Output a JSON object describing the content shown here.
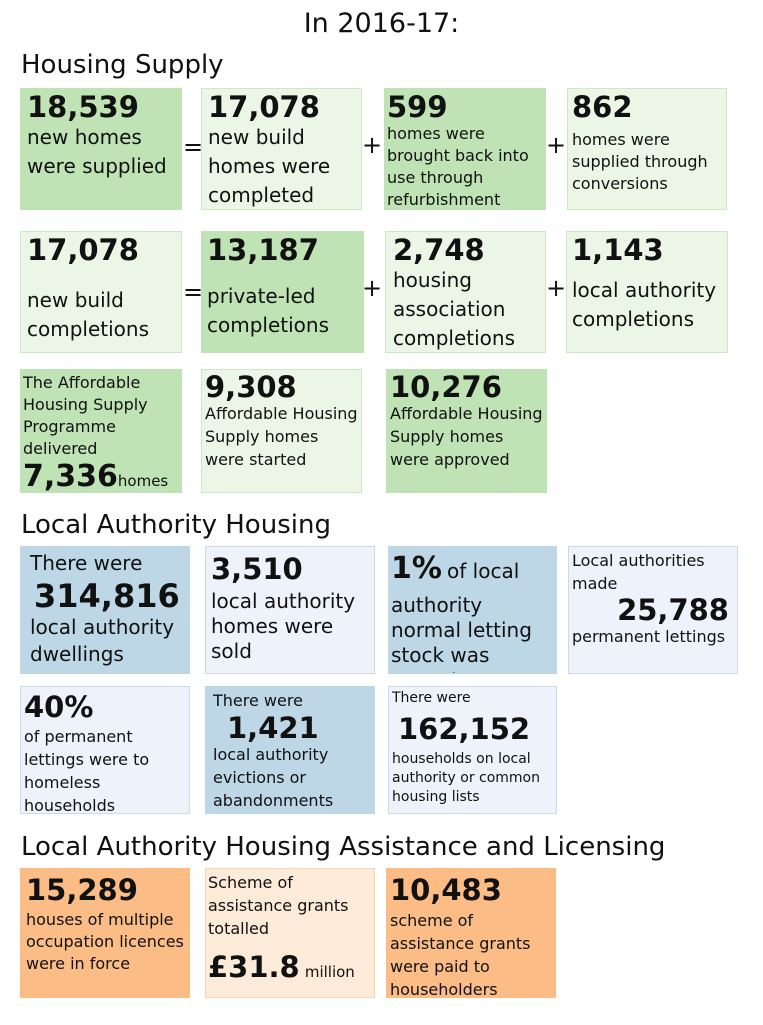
{
  "title": "In 2016-17:",
  "colors": {
    "green_dark": "#bfe3b4",
    "green_light": "#ebf6e7",
    "blue_dark": "#bdd7e7",
    "blue_light": "#eef2fb",
    "orange_dark": "#fbbd85",
    "orange_light": "#fdebd9"
  },
  "housing_supply": {
    "heading": "Housing Supply",
    "row1": {
      "a": {
        "value": "18,539",
        "text": "new homes were supplied"
      },
      "b": {
        "value": "17,078",
        "text": "new build homes were completed"
      },
      "c": {
        "value": "599",
        "text": "homes were brought back into use through refurbishment"
      },
      "d": {
        "value": "862",
        "text": "homes were supplied through conversions"
      }
    },
    "row2": {
      "a": {
        "value": "17,078",
        "text": "new build completions"
      },
      "b": {
        "value": "13,187",
        "text": "private-led completions"
      },
      "c": {
        "value": "2,748",
        "text": "housing association completions"
      },
      "d": {
        "value": "1,143",
        "text": "local authority completions"
      }
    },
    "row3": {
      "a": {
        "text": "The Affordable Housing Supply Programme delivered",
        "value": "7,336",
        "unit": "homes"
      },
      "b": {
        "value": "9,308",
        "text": "Affordable Housing Supply homes were started"
      },
      "c": {
        "value": "10,276",
        "text": "Affordable Housing Supply homes were approved"
      }
    },
    "signs": {
      "equals": "=",
      "plus": "+"
    }
  },
  "la_housing": {
    "heading": "Local Authority Housing",
    "a": {
      "prefix": "There were",
      "value": "314,816",
      "text": "local authority dwellings"
    },
    "b": {
      "value": "3,510",
      "text": "local authority homes were sold"
    },
    "c": {
      "value": "1%",
      "suffix": "of local",
      "text": "authority normal letting stock was vacant"
    },
    "d": {
      "prefix": "Local authorities made",
      "value": "25,788",
      "text": "permanent lettings"
    },
    "e": {
      "value": "40%",
      "text": "of permanent lettings were to homeless households"
    },
    "f": {
      "prefix": "There were",
      "value": "1,421",
      "text": "local authority evictions or abandonments"
    },
    "g": {
      "prefix": "There were",
      "value": "162,152",
      "text": "households on local authority or common housing lists"
    }
  },
  "assistance": {
    "heading": "Local Authority Housing Assistance and Licensing",
    "a": {
      "value": "15,289",
      "text": "houses of multiple occupation licences were in force"
    },
    "b": {
      "text": "Scheme of assistance grants totalled",
      "value": "£31.8",
      "unit": "million"
    },
    "c": {
      "value": "10,483",
      "text": "scheme of assistance grants were paid to householders"
    }
  }
}
